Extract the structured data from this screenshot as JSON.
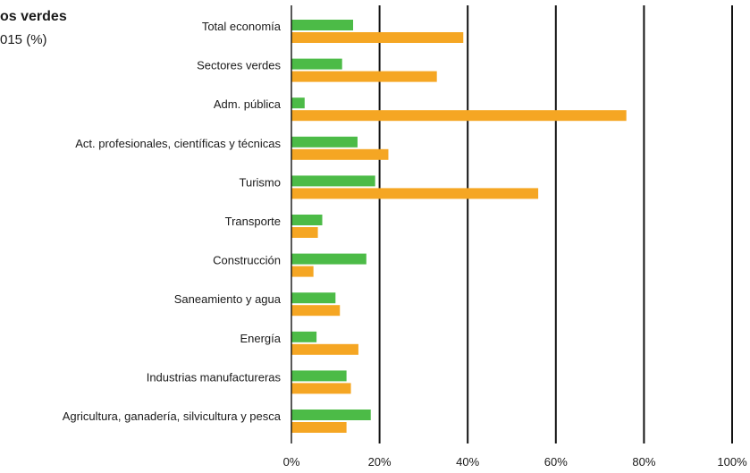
{
  "chart_data": {
    "type": "bar",
    "orientation": "horizontal",
    "title_lines": [
      "os verdes",
      "015 (%)"
    ],
    "categories": [
      "Total economía",
      "Sectores verdes",
      "Adm. pública",
      "Act. profesionales, científicas y técnicas",
      "Turismo",
      "Transporte",
      "Construcción",
      "Saneamiento y agua",
      "Energía",
      "Industrias manufactureras",
      "Agricultura, ganadería, silvicultura y pesca"
    ],
    "series": [
      {
        "color": "#4cbb47",
        "values": [
          14,
          11.5,
          3,
          15,
          19,
          7,
          17,
          10,
          5.7,
          12.5,
          18
        ]
      },
      {
        "color": "#f5a623",
        "values": [
          39,
          33,
          76,
          22,
          56,
          6,
          5,
          11,
          15.2,
          13.5,
          12.5
        ]
      }
    ],
    "xlim": [
      0,
      100
    ],
    "x_ticks": [
      "0%",
      "20%",
      "40%",
      "60%",
      "80%",
      "100%"
    ],
    "tick_values": [
      0,
      20,
      40,
      60,
      80,
      100
    ],
    "grid": true,
    "xlabel": "",
    "ylabel": ""
  }
}
